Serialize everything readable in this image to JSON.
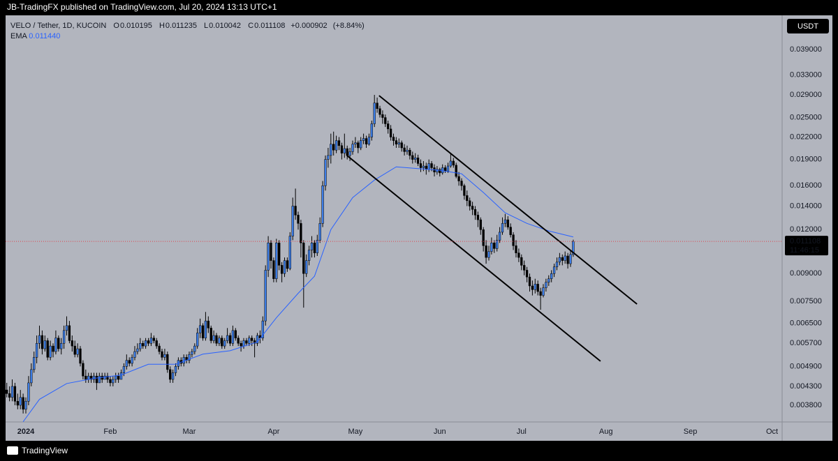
{
  "header": {
    "published": "JB-TradingFX published on TradingView.com, Jul 20, 2024 13:13 UTC+1",
    "brand": "TradingView"
  },
  "chart_data": {
    "type": "candlestick",
    "legend": {
      "symbol": "VELO / Tether, 1D, KUCOIN",
      "fields": [
        {
          "label": "O",
          "value": 0.010195
        },
        {
          "label": "H",
          "value": 0.011235
        },
        {
          "label": "L",
          "value": 0.010042
        },
        {
          "label": "C",
          "value": 0.011108
        }
      ],
      "change": "+0.000902",
      "change_pct": "(+8.84%)"
    },
    "currency": "USDT",
    "last_price": 0.011108,
    "countdown": "11:46:15",
    "color_up": "#3d7ee8",
    "color_down": "#000000",
    "last_price_color": "#e0434d",
    "x": [
      -7,
      -6,
      -5,
      -4,
      -3,
      -2,
      -1,
      0,
      1,
      2,
      3,
      4,
      5,
      6,
      7,
      8,
      9,
      10,
      11,
      12,
      13,
      14,
      15,
      16,
      17,
      18,
      19,
      20,
      21,
      22,
      23,
      24,
      25,
      26,
      27,
      28,
      29,
      30,
      31,
      32,
      33,
      34,
      35,
      36,
      37,
      38,
      39,
      40,
      41,
      42,
      43,
      44,
      45,
      46,
      47,
      48,
      49,
      50,
      51,
      52,
      53,
      54,
      55,
      56,
      57,
      58,
      59,
      60,
      61,
      62,
      63,
      64,
      65,
      66,
      67,
      68,
      69,
      70,
      71,
      72,
      73,
      74,
      75,
      76,
      77,
      78,
      79,
      80,
      81,
      82,
      83,
      84,
      85,
      86,
      87,
      88,
      89,
      90,
      91,
      92,
      93,
      94,
      95,
      96,
      97,
      98,
      99,
      100,
      101,
      102,
      103,
      104,
      105,
      106,
      107,
      108,
      109,
      110,
      111,
      112,
      113,
      114,
      115,
      116,
      117,
      118,
      119,
      120,
      121,
      122,
      123,
      124,
      125,
      126,
      127,
      128,
      129,
      130,
      131,
      132,
      133,
      134,
      135,
      136,
      137,
      138,
      139,
      140,
      141,
      142,
      143,
      144,
      145,
      146,
      147,
      148,
      149,
      150,
      151,
      152,
      153,
      154,
      155,
      156,
      157,
      158,
      159,
      160,
      161,
      162,
      163,
      164,
      165,
      166,
      167,
      168,
      169,
      170,
      171,
      172,
      173,
      174,
      175,
      176,
      177,
      178,
      179,
      180,
      181,
      182,
      183,
      184,
      185,
      186,
      187,
      188,
      189,
      190,
      191,
      192,
      193,
      194,
      195,
      196,
      197,
      198,
      199,
      200,
      201
    ],
    "open": [
      0.0042,
      0.0041,
      0.004,
      0.0043,
      0.0039,
      0.0038,
      0.004,
      0.0037,
      0.0039,
      0.0044,
      0.0048,
      0.0052,
      0.0057,
      0.006,
      0.0055,
      0.0058,
      0.0052,
      0.0056,
      0.0054,
      0.0059,
      0.0055,
      0.0057,
      0.0062,
      0.0064,
      0.0058,
      0.0056,
      0.0053,
      0.0055,
      0.005,
      0.0046,
      0.0045,
      0.0046,
      0.0045,
      0.0046,
      0.0044,
      0.0046,
      0.0045,
      0.0046,
      0.0045,
      0.0044,
      0.0045,
      0.0046,
      0.0045,
      0.0047,
      0.0049,
      0.0051,
      0.005,
      0.0052,
      0.0054,
      0.0055,
      0.0057,
      0.0056,
      0.0058,
      0.0057,
      0.0059,
      0.0058,
      0.0056,
      0.0054,
      0.0052,
      0.0053,
      0.0048,
      0.0045,
      0.0047,
      0.0049,
      0.0051,
      0.005,
      0.0052,
      0.0051,
      0.0053,
      0.0054,
      0.0056,
      0.0061,
      0.0064,
      0.0059,
      0.0066,
      0.0063,
      0.0058,
      0.006,
      0.0057,
      0.0059,
      0.0056,
      0.0058,
      0.006,
      0.0057,
      0.0062,
      0.0059,
      0.0057,
      0.0056,
      0.0058,
      0.0057,
      0.0059,
      0.0058,
      0.0057,
      0.006,
      0.0059,
      0.0066,
      0.0092,
      0.011,
      0.0098,
      0.0087,
      0.011,
      0.0095,
      0.009,
      0.0098,
      0.0093,
      0.0115,
      0.014,
      0.0132,
      0.0125,
      0.011,
      0.009,
      0.0098,
      0.0105,
      0.011,
      0.0103,
      0.0112,
      0.0125,
      0.016,
      0.019,
      0.0195,
      0.021,
      0.0202,
      0.0215,
      0.0208,
      0.0198,
      0.0204,
      0.0195,
      0.02,
      0.021,
      0.0212,
      0.0205,
      0.0215,
      0.0218,
      0.021,
      0.022,
      0.024,
      0.0275,
      0.0265,
      0.0255,
      0.025,
      0.024,
      0.0232,
      0.022,
      0.0215,
      0.021,
      0.0212,
      0.0205,
      0.02,
      0.0202,
      0.0195,
      0.019,
      0.0192,
      0.0185,
      0.018,
      0.0182,
      0.0178,
      0.0185,
      0.018,
      0.0175,
      0.0178,
      0.0174,
      0.018,
      0.0176,
      0.0182,
      0.0188,
      0.0183,
      0.017,
      0.0165,
      0.016,
      0.015,
      0.0145,
      0.014,
      0.0137,
      0.0132,
      0.0128,
      0.012,
      0.0108,
      0.01,
      0.0104,
      0.011,
      0.0106,
      0.0112,
      0.0118,
      0.0125,
      0.0128,
      0.0122,
      0.0116,
      0.0108,
      0.0103,
      0.01,
      0.0095,
      0.0092,
      0.0088,
      0.0083,
      0.0081,
      0.0084,
      0.008,
      0.0078,
      0.0082,
      0.0085,
      0.0087,
      0.009,
      0.0094,
      0.0097,
      0.01,
      0.0098,
      0.0101,
      0.0096,
      0.010195
    ],
    "high": [
      0.0044,
      0.0043,
      0.0045,
      0.0044,
      0.0041,
      0.0042,
      0.0041,
      0.004,
      0.0046,
      0.005,
      0.0054,
      0.006,
      0.0064,
      0.0062,
      0.006,
      0.0059,
      0.0058,
      0.0057,
      0.0062,
      0.006,
      0.0059,
      0.0064,
      0.0068,
      0.0066,
      0.006,
      0.0058,
      0.0057,
      0.0056,
      0.0051,
      0.0048,
      0.0047,
      0.0047,
      0.0047,
      0.0047,
      0.0047,
      0.0047,
      0.0047,
      0.0047,
      0.0046,
      0.0046,
      0.0047,
      0.0047,
      0.0048,
      0.005,
      0.0053,
      0.0052,
      0.0053,
      0.0056,
      0.0057,
      0.0059,
      0.0058,
      0.0059,
      0.0059,
      0.0061,
      0.006,
      0.0059,
      0.0057,
      0.0055,
      0.0055,
      0.0054,
      0.0049,
      0.0048,
      0.005,
      0.0052,
      0.0052,
      0.0053,
      0.0053,
      0.0054,
      0.0055,
      0.0057,
      0.0063,
      0.0067,
      0.0065,
      0.007,
      0.0068,
      0.0064,
      0.0062,
      0.0061,
      0.006,
      0.006,
      0.0059,
      0.0063,
      0.0061,
      0.0064,
      0.0063,
      0.006,
      0.0058,
      0.0059,
      0.0059,
      0.006,
      0.006,
      0.0059,
      0.0061,
      0.0062,
      0.0068,
      0.0095,
      0.0115,
      0.0112,
      0.01,
      0.0113,
      0.0112,
      0.0097,
      0.01,
      0.01,
      0.0118,
      0.0148,
      0.0157,
      0.0135,
      0.0128,
      0.0112,
      0.0102,
      0.0108,
      0.0115,
      0.0112,
      0.0116,
      0.013,
      0.0165,
      0.0195,
      0.0205,
      0.0225,
      0.0228,
      0.0222,
      0.022,
      0.0212,
      0.0225,
      0.0208,
      0.0205,
      0.0215,
      0.022,
      0.0215,
      0.022,
      0.0225,
      0.0222,
      0.0225,
      0.0245,
      0.029,
      0.0285,
      0.027,
      0.0262,
      0.0255,
      0.0245,
      0.0238,
      0.0225,
      0.022,
      0.0218,
      0.0215,
      0.021,
      0.0208,
      0.0205,
      0.02,
      0.0198,
      0.0196,
      0.019,
      0.0188,
      0.0186,
      0.019,
      0.0188,
      0.0184,
      0.0182,
      0.018,
      0.0184,
      0.0183,
      0.0186,
      0.0198,
      0.0192,
      0.0186,
      0.0175,
      0.0168,
      0.0162,
      0.0155,
      0.0148,
      0.0144,
      0.014,
      0.0135,
      0.013,
      0.0122,
      0.0112,
      0.0108,
      0.0114,
      0.0112,
      0.0116,
      0.0122,
      0.013,
      0.0133,
      0.0131,
      0.0125,
      0.0118,
      0.0112,
      0.0106,
      0.0102,
      0.0098,
      0.0094,
      0.009,
      0.0086,
      0.0087,
      0.0086,
      0.0082,
      0.0084,
      0.0087,
      0.0089,
      0.0092,
      0.0096,
      0.01,
      0.0103,
      0.0102,
      0.0104,
      0.0103,
      0.0105,
      0.011235
    ],
    "low": [
      0.004,
      0.0039,
      0.0039,
      0.0038,
      0.0037,
      0.0037,
      0.0036,
      0.0036,
      0.0038,
      0.0043,
      0.0047,
      0.005,
      0.0055,
      0.0053,
      0.0054,
      0.0051,
      0.0051,
      0.0052,
      0.0053,
      0.0054,
      0.0053,
      0.0055,
      0.006,
      0.0057,
      0.0054,
      0.0052,
      0.0052,
      0.0049,
      0.0045,
      0.0044,
      0.0044,
      0.0044,
      0.0044,
      0.0042,
      0.0044,
      0.0044,
      0.0045,
      0.0044,
      0.0043,
      0.0043,
      0.0044,
      0.0044,
      0.0045,
      0.0046,
      0.0048,
      0.0049,
      0.0049,
      0.0051,
      0.0053,
      0.0054,
      0.0055,
      0.0055,
      0.0056,
      0.0056,
      0.0057,
      0.0055,
      0.0053,
      0.0051,
      0.0051,
      0.0047,
      0.0044,
      0.0044,
      0.0046,
      0.0048,
      0.0049,
      0.0049,
      0.005,
      0.005,
      0.0052,
      0.0053,
      0.0055,
      0.0059,
      0.0058,
      0.0058,
      0.0061,
      0.0057,
      0.0057,
      0.0056,
      0.0056,
      0.0055,
      0.0055,
      0.0057,
      0.0056,
      0.0056,
      0.0058,
      0.0056,
      0.0054,
      0.0055,
      0.0056,
      0.0056,
      0.0056,
      0.0052,
      0.0056,
      0.0057,
      0.0058,
      0.0064,
      0.0088,
      0.0093,
      0.0085,
      0.0085,
      0.0092,
      0.0085,
      0.0088,
      0.0091,
      0.0092,
      0.0112,
      0.0128,
      0.012,
      0.01,
      0.0072,
      0.0088,
      0.0095,
      0.01,
      0.01,
      0.0101,
      0.011,
      0.0122,
      0.0155,
      0.018,
      0.0185,
      0.0195,
      0.0198,
      0.0202,
      0.019,
      0.0192,
      0.019,
      0.0188,
      0.0196,
      0.0205,
      0.0198,
      0.0202,
      0.021,
      0.0205,
      0.0208,
      0.0215,
      0.0235,
      0.0258,
      0.025,
      0.024,
      0.0235,
      0.0225,
      0.0215,
      0.0208,
      0.0205,
      0.0205,
      0.02,
      0.0195,
      0.0196,
      0.019,
      0.0185,
      0.0186,
      0.0182,
      0.0175,
      0.0176,
      0.0172,
      0.0175,
      0.0176,
      0.017,
      0.0172,
      0.017,
      0.0172,
      0.0174,
      0.0174,
      0.018,
      0.018,
      0.0168,
      0.016,
      0.0155,
      0.0146,
      0.014,
      0.0136,
      0.0132,
      0.0128,
      0.0122,
      0.0116,
      0.0104,
      0.0096,
      0.0098,
      0.0102,
      0.0103,
      0.0104,
      0.011,
      0.0116,
      0.0122,
      0.012,
      0.0114,
      0.0105,
      0.01,
      0.0097,
      0.0092,
      0.0089,
      0.0085,
      0.008,
      0.0078,
      0.0079,
      0.0078,
      0.0071,
      0.0077,
      0.008,
      0.0083,
      0.0085,
      0.0088,
      0.0092,
      0.0095,
      0.0095,
      0.0096,
      0.0093,
      0.0094,
      0.010042
    ],
    "close": [
      0.0041,
      0.004,
      0.0043,
      0.0039,
      0.0038,
      0.004,
      0.0037,
      0.0039,
      0.0044,
      0.0048,
      0.0052,
      0.0057,
      0.006,
      0.0055,
      0.0058,
      0.0052,
      0.0056,
      0.0054,
      0.0059,
      0.0055,
      0.0057,
      0.0062,
      0.0064,
      0.0058,
      0.0056,
      0.0053,
      0.0055,
      0.005,
      0.0046,
      0.0045,
      0.0046,
      0.0045,
      0.0046,
      0.0044,
      0.0046,
      0.0045,
      0.0046,
      0.0045,
      0.0044,
      0.0045,
      0.0046,
      0.0045,
      0.0047,
      0.0049,
      0.0051,
      0.005,
      0.0052,
      0.0054,
      0.0055,
      0.0057,
      0.0056,
      0.0058,
      0.0057,
      0.0059,
      0.0058,
      0.0056,
      0.0054,
      0.0052,
      0.0053,
      0.0048,
      0.0045,
      0.0047,
      0.0049,
      0.0051,
      0.005,
      0.0052,
      0.0051,
      0.0053,
      0.0054,
      0.0056,
      0.0061,
      0.0064,
      0.0059,
      0.0066,
      0.0063,
      0.0058,
      0.006,
      0.0057,
      0.0059,
      0.0056,
      0.0058,
      0.006,
      0.0057,
      0.0062,
      0.0059,
      0.0057,
      0.0056,
      0.0058,
      0.0057,
      0.0059,
      0.0058,
      0.0057,
      0.006,
      0.0059,
      0.0066,
      0.0092,
      0.011,
      0.0098,
      0.0087,
      0.011,
      0.0095,
      0.009,
      0.0098,
      0.0093,
      0.0115,
      0.014,
      0.0132,
      0.0125,
      0.011,
      0.009,
      0.0098,
      0.0105,
      0.011,
      0.0103,
      0.0112,
      0.0125,
      0.016,
      0.019,
      0.0195,
      0.021,
      0.0202,
      0.0215,
      0.0208,
      0.0198,
      0.0204,
      0.0195,
      0.02,
      0.021,
      0.0212,
      0.0205,
      0.0215,
      0.0218,
      0.021,
      0.022,
      0.024,
      0.0275,
      0.0265,
      0.0255,
      0.025,
      0.024,
      0.0232,
      0.022,
      0.0215,
      0.021,
      0.0212,
      0.0205,
      0.02,
      0.0202,
      0.0195,
      0.019,
      0.0192,
      0.0185,
      0.018,
      0.0182,
      0.0178,
      0.0185,
      0.018,
      0.0175,
      0.0178,
      0.0174,
      0.018,
      0.0176,
      0.0182,
      0.0188,
      0.0183,
      0.017,
      0.0165,
      0.016,
      0.015,
      0.0145,
      0.014,
      0.0137,
      0.0132,
      0.0128,
      0.012,
      0.0108,
      0.01,
      0.0104,
      0.011,
      0.0106,
      0.0112,
      0.0118,
      0.0125,
      0.0128,
      0.0122,
      0.0116,
      0.0108,
      0.0103,
      0.01,
      0.0095,
      0.0092,
      0.0088,
      0.0083,
      0.0081,
      0.0084,
      0.008,
      0.0078,
      0.0082,
      0.0085,
      0.0087,
      0.009,
      0.0094,
      0.0097,
      0.01,
      0.0098,
      0.0101,
      0.0096,
      0.0102,
      0.011108
    ],
    "ema": {
      "name": "EMA",
      "color": "#2962ff",
      "last": {
        "value": 0.01144,
        "label": "0.011440"
      },
      "x": [
        -1,
        5,
        15,
        25,
        35,
        45,
        55,
        65,
        75,
        85,
        92,
        100,
        106,
        112,
        120,
        128,
        136,
        144,
        152,
        160,
        168,
        176,
        184,
        192,
        201
      ],
      "values": [
        0.00341,
        0.00395,
        0.00438,
        0.00453,
        0.00463,
        0.00497,
        0.00497,
        0.00531,
        0.00543,
        0.00575,
        0.00674,
        0.00791,
        0.00885,
        0.012,
        0.0148,
        0.0166,
        0.0181,
        0.0179,
        0.0177,
        0.0173,
        0.0153,
        0.0134,
        0.0125,
        0.0119,
        0.01144
      ]
    },
    "trendlines": [
      {
        "color": "#000000",
        "x": [
          129.7,
          224.4
        ],
        "values": [
          0.02886,
          0.00737
        ]
      },
      {
        "color": "#000000",
        "x": [
          117.9,
          211
        ],
        "values": [
          0.0195,
          0.00507
        ]
      }
    ],
    "log_scale": true,
    "grid": false,
    "xlim": [
      -7.44,
      277.7
    ],
    "ylim": [
      0.003406,
      0.04882
    ],
    "xticks": [
      {
        "value": 0,
        "label": "2024"
      },
      {
        "value": 31,
        "label": "Feb"
      },
      {
        "value": 60,
        "label": "Mar"
      },
      {
        "value": 91,
        "label": "Apr"
      },
      {
        "value": 121,
        "label": "May"
      },
      {
        "value": 152,
        "label": "Jun"
      },
      {
        "value": 182,
        "label": "Jul"
      },
      {
        "value": 213,
        "label": "Aug"
      },
      {
        "value": 244,
        "label": "Sep"
      },
      {
        "value": 274,
        "label": "Oct"
      }
    ],
    "yticks": [
      {
        "value": 0.039,
        "label": "0.039000"
      },
      {
        "value": 0.033,
        "label": "0.033000"
      },
      {
        "value": 0.029,
        "label": "0.029000"
      },
      {
        "value": 0.025,
        "label": "0.025000"
      },
      {
        "value": 0.022,
        "label": "0.022000"
      },
      {
        "value": 0.019,
        "label": "0.019000"
      },
      {
        "value": 0.016,
        "label": "0.016000"
      },
      {
        "value": 0.014,
        "label": "0.014000"
      },
      {
        "value": 0.012,
        "label": "0.012000"
      },
      {
        "value": 0.009,
        "label": "0.009000"
      },
      {
        "value": 0.0075,
        "label": "0.007500"
      },
      {
        "value": 0.0065,
        "label": "0.006500"
      },
      {
        "value": 0.0057,
        "label": "0.005700"
      },
      {
        "value": 0.0049,
        "label": "0.004900"
      },
      {
        "value": 0.0043,
        "label": "0.004300"
      },
      {
        "value": 0.0038,
        "label": "0.003800"
      }
    ]
  }
}
